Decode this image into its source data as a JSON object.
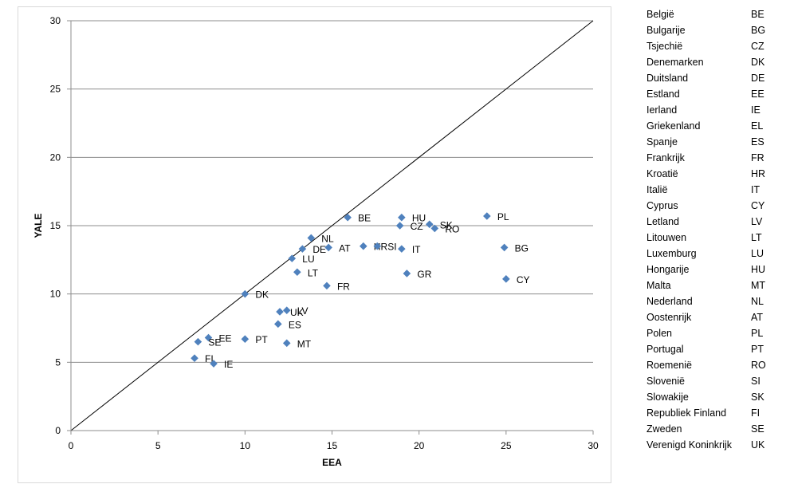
{
  "chart_data": {
    "type": "scatter",
    "xlabel": "EEA",
    "ylabel": "YALE",
    "xlim": [
      0,
      30
    ],
    "ylim": [
      0,
      30
    ],
    "xticks": [
      0,
      5,
      10,
      15,
      20,
      25,
      30
    ],
    "yticks": [
      0,
      5,
      10,
      15,
      20,
      25,
      30
    ],
    "grid": "horizontal",
    "reference_line": "y = x",
    "marker_color": "#4f81bd",
    "points": [
      {
        "label": "BE",
        "x": 15.9,
        "y": 15.6
      },
      {
        "label": "HU",
        "x": 19.0,
        "y": 15.6
      },
      {
        "label": "CZ",
        "x": 18.9,
        "y": 15.0
      },
      {
        "label": "SK",
        "x": 20.6,
        "y": 15.1
      },
      {
        "label": "RO",
        "x": 20.9,
        "y": 14.8
      },
      {
        "label": "PL",
        "x": 23.9,
        "y": 15.7
      },
      {
        "label": "NL",
        "x": 13.8,
        "y": 14.1
      },
      {
        "label": "DE",
        "x": 13.3,
        "y": 13.3
      },
      {
        "label": "AT",
        "x": 14.8,
        "y": 13.4
      },
      {
        "label": "HR",
        "x": 16.8,
        "y": 13.5
      },
      {
        "label": "SI",
        "x": 17.6,
        "y": 13.5
      },
      {
        "label": "IT",
        "x": 19.0,
        "y": 13.3
      },
      {
        "label": "BG",
        "x": 24.9,
        "y": 13.4
      },
      {
        "label": "LU",
        "x": 12.7,
        "y": 12.6
      },
      {
        "label": "LT",
        "x": 13.0,
        "y": 11.6
      },
      {
        "label": "GR",
        "x": 19.3,
        "y": 11.5
      },
      {
        "label": "CY",
        "x": 25.0,
        "y": 11.1
      },
      {
        "label": "FR",
        "x": 14.7,
        "y": 10.6
      },
      {
        "label": "DK",
        "x": 10.0,
        "y": 10.0
      },
      {
        "label": "UK",
        "x": 12.0,
        "y": 8.7
      },
      {
        "label": "LV",
        "x": 12.4,
        "y": 8.8
      },
      {
        "label": "ES",
        "x": 11.9,
        "y": 7.8
      },
      {
        "label": "EE",
        "x": 7.9,
        "y": 6.8
      },
      {
        "label": "SE",
        "x": 7.3,
        "y": 6.5
      },
      {
        "label": "PT",
        "x": 10.0,
        "y": 6.7
      },
      {
        "label": "MT",
        "x": 12.4,
        "y": 6.4
      },
      {
        "label": "FI",
        "x": 7.1,
        "y": 5.3
      },
      {
        "label": "IE",
        "x": 8.2,
        "y": 4.9
      }
    ]
  },
  "legend": [
    {
      "name": "België",
      "code": "BE"
    },
    {
      "name": "Bulgarije",
      "code": "BG"
    },
    {
      "name": "Tsjechië",
      "code": "CZ"
    },
    {
      "name": "Denemarken",
      "code": "DK"
    },
    {
      "name": "Duitsland",
      "code": "DE"
    },
    {
      "name": "Estland",
      "code": "EE"
    },
    {
      "name": "Ierland",
      "code": "IE"
    },
    {
      "name": "Griekenland",
      "code": "EL"
    },
    {
      "name": "Spanje",
      "code": "ES"
    },
    {
      "name": "Frankrijk",
      "code": "FR"
    },
    {
      "name": "Kroatië",
      "code": "HR"
    },
    {
      "name": "Italië",
      "code": "IT"
    },
    {
      "name": "Cyprus",
      "code": "CY"
    },
    {
      "name": "Letland",
      "code": "LV"
    },
    {
      "name": "Litouwen",
      "code": "LT"
    },
    {
      "name": "Luxemburg",
      "code": "LU"
    },
    {
      "name": "Hongarije",
      "code": "HU"
    },
    {
      "name": "Malta",
      "code": "MT"
    },
    {
      "name": "Nederland",
      "code": "NL"
    },
    {
      "name": "Oostenrijk",
      "code": "AT"
    },
    {
      "name": "Polen",
      "code": "PL"
    },
    {
      "name": "Portugal",
      "code": "PT"
    },
    {
      "name": "Roemenië",
      "code": "RO"
    },
    {
      "name": "Slovenië",
      "code": "SI"
    },
    {
      "name": "Slowakije",
      "code": "SK"
    },
    {
      "name": "Republiek Finland",
      "code": "FI"
    },
    {
      "name": "Zweden",
      "code": "SE"
    },
    {
      "name": "Verenigd Koninkrijk",
      "code": "UK"
    }
  ]
}
